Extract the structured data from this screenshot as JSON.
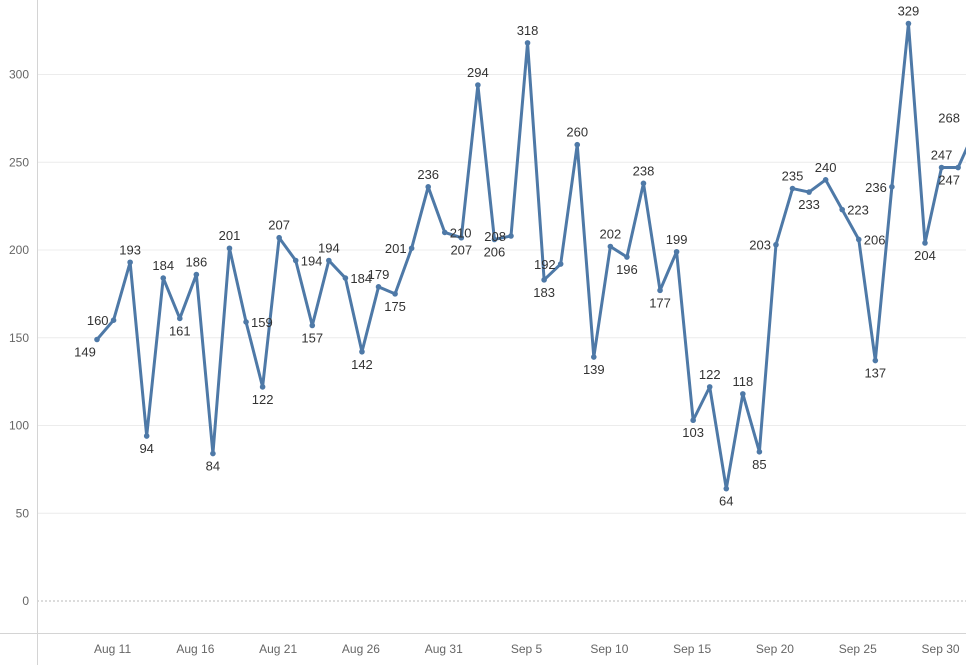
{
  "chart_data": {
    "type": "line",
    "title": "",
    "xlabel": "",
    "ylabel": "",
    "ylim": [
      -18,
      338
    ],
    "grid": true,
    "x_start": "Aug 11 (Aug 7)",
    "line_color": "#4e79a7",
    "series": [
      {
        "values": [
          149,
          160,
          193,
          94,
          184,
          161,
          186,
          84,
          201,
          159,
          122,
          207,
          194,
          157,
          194,
          184,
          142,
          179,
          175,
          201,
          236,
          210,
          207,
          294,
          206,
          208,
          318,
          183,
          192,
          260,
          139,
          202,
          196,
          238,
          177,
          199,
          103,
          122,
          64,
          118,
          85,
          203,
          235,
          233,
          240,
          223,
          206,
          137,
          236,
          329,
          204,
          247,
          247,
          268
        ]
      }
    ],
    "y_ticks": [
      "0",
      "50",
      "100",
      "150",
      "200",
      "250",
      "300"
    ],
    "x_ticks": [
      "Aug 11",
      "Aug 16",
      "Aug 21",
      "Aug 26",
      "Aug 31",
      "Sep 5",
      "Sep 10",
      "Sep 15",
      "Sep 20",
      "Sep 25",
      "Sep 30"
    ]
  }
}
